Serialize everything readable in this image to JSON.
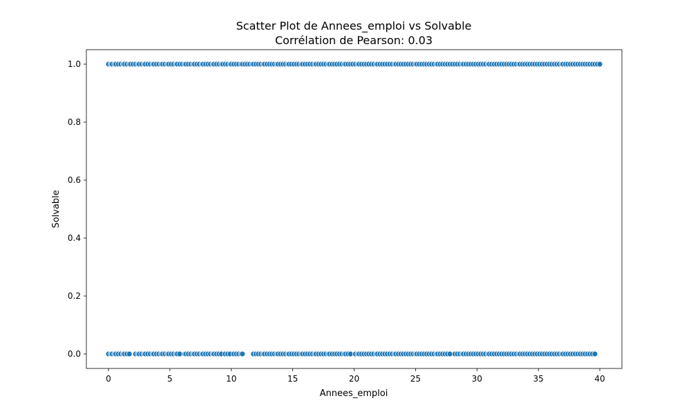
{
  "chart_data": {
    "type": "scatter",
    "title": "Scatter Plot de Annees_emploi vs Solvable",
    "subtitle": "Corrélation de Pearson: 0.03",
    "xlabel": "Annees_emploi",
    "ylabel": "Solvable",
    "xlim": [
      -1.8,
      41.8
    ],
    "ylim": [
      -0.05,
      1.05
    ],
    "xticks": [
      0,
      5,
      10,
      15,
      20,
      25,
      30,
      35,
      40
    ],
    "xtick_labels": [
      "0",
      "5",
      "10",
      "15",
      "20",
      "25",
      "30",
      "35",
      "40"
    ],
    "yticks": [
      0.0,
      0.2,
      0.4,
      0.6,
      0.8,
      1.0
    ],
    "ytick_labels": [
      "0.0",
      "0.2",
      "0.4",
      "0.6",
      "0.8",
      "1.0"
    ],
    "grid": false,
    "marker_color": "#1f77b4",
    "marker_edge_color": "#ffffff",
    "series": [
      {
        "y": 1,
        "x": [
          0.0,
          0.2,
          0.3,
          0.5,
          0.6,
          0.8,
          1.0,
          1.2,
          1.3,
          1.5,
          1.7,
          1.8,
          2.0,
          2.2,
          2.4,
          2.5,
          2.7,
          2.9,
          3.0,
          3.2,
          3.4,
          3.6,
          3.7,
          3.9,
          4.1,
          4.3,
          4.4,
          4.6,
          4.8,
          4.9,
          5.1,
          5.3,
          5.5,
          5.6,
          5.8,
          6.0,
          6.2,
          6.3,
          6.5,
          6.7,
          6.9,
          7.0,
          7.2,
          7.4,
          7.6,
          7.7,
          7.9,
          8.1,
          8.3,
          8.5,
          8.6,
          8.8,
          9.0,
          9.2,
          9.3,
          9.5,
          9.7,
          9.9,
          10.0,
          10.2,
          10.4,
          10.6,
          10.8,
          10.9,
          11.1,
          11.3,
          11.5,
          11.7,
          11.8,
          12.0,
          12.2,
          12.4,
          12.6,
          12.7,
          12.9,
          13.1,
          13.3,
          13.5,
          13.7,
          13.8,
          14.0,
          14.2,
          14.4,
          14.6,
          14.7,
          14.9,
          15.1,
          15.3,
          15.5,
          15.7,
          15.8,
          16.0,
          16.2,
          16.4,
          16.6,
          16.8,
          16.9,
          17.1,
          17.3,
          17.5,
          17.7,
          17.9,
          18.0,
          18.2,
          18.4,
          18.6,
          18.8,
          19.0,
          19.2,
          19.3,
          19.5,
          19.7,
          19.9,
          20.1,
          20.3,
          20.4,
          20.6,
          20.8,
          21.0,
          21.2,
          21.4,
          21.6,
          21.8,
          21.9,
          22.1,
          22.3,
          22.5,
          22.7,
          22.9,
          23.1,
          23.3,
          23.4,
          23.6,
          23.8,
          24.0,
          24.2,
          24.4,
          24.6,
          24.8,
          25.0,
          25.1,
          25.3,
          25.5,
          25.7,
          25.9,
          26.1,
          26.3,
          26.5,
          26.7,
          26.8,
          27.0,
          27.2,
          27.4,
          27.6,
          27.8,
          28.0,
          28.2,
          28.4,
          28.6,
          28.8,
          28.9,
          29.1,
          29.3,
          29.5,
          29.7,
          29.9,
          30.1,
          30.3,
          30.5,
          30.7,
          30.9,
          31.0,
          31.2,
          31.4,
          31.6,
          31.8,
          32.0,
          32.2,
          32.4,
          32.6,
          32.8,
          33.0,
          33.2,
          33.4,
          33.5,
          33.7,
          33.9,
          34.1,
          34.3,
          34.5,
          34.7,
          34.9,
          35.1,
          35.3,
          35.5,
          35.7,
          35.9,
          36.1,
          36.3,
          36.5,
          36.7,
          36.9,
          37.0,
          37.2,
          37.4,
          37.6,
          37.8,
          38.0,
          38.2,
          38.4,
          38.6,
          38.8,
          39.0,
          39.2,
          39.4,
          39.6,
          39.8,
          40.0
        ]
      },
      {
        "y": 0,
        "x": [
          0.0,
          0.2,
          0.3,
          0.5,
          0.6,
          0.8,
          1.0,
          1.2,
          1.3,
          1.5,
          1.7,
          2.2,
          2.4,
          2.5,
          2.7,
          2.9,
          3.0,
          3.2,
          3.4,
          3.6,
          3.7,
          3.9,
          4.1,
          4.3,
          4.4,
          4.6,
          4.8,
          4.9,
          5.1,
          5.3,
          5.5,
          5.6,
          5.8,
          6.2,
          6.3,
          6.5,
          6.7,
          6.9,
          7.0,
          7.2,
          7.4,
          7.6,
          7.7,
          7.9,
          8.1,
          8.3,
          8.5,
          8.6,
          8.8,
          9.0,
          9.2,
          9.5,
          9.7,
          9.9,
          10.2,
          10.4,
          10.6,
          10.8,
          10.9,
          11.8,
          12.0,
          12.2,
          12.4,
          12.6,
          12.7,
          12.9,
          13.1,
          13.3,
          13.5,
          13.7,
          13.8,
          14.0,
          14.2,
          14.4,
          14.6,
          14.7,
          14.9,
          15.1,
          15.3,
          15.5,
          15.7,
          15.8,
          16.0,
          16.2,
          16.4,
          16.6,
          16.8,
          16.9,
          17.1,
          17.3,
          17.5,
          17.7,
          17.9,
          18.0,
          18.2,
          18.4,
          18.6,
          18.8,
          19.0,
          19.2,
          19.3,
          19.5,
          19.7,
          20.1,
          20.3,
          20.4,
          20.6,
          20.8,
          21.0,
          21.2,
          21.4,
          21.6,
          21.8,
          21.9,
          22.1,
          22.3,
          22.5,
          22.7,
          22.9,
          23.1,
          23.3,
          23.4,
          23.6,
          23.8,
          24.0,
          24.2,
          24.4,
          24.6,
          24.8,
          25.0,
          25.1,
          25.3,
          25.5,
          25.7,
          25.9,
          26.1,
          26.3,
          26.5,
          26.7,
          26.8,
          27.0,
          27.2,
          27.4,
          27.6,
          27.8,
          28.2,
          28.4,
          28.6,
          28.8,
          28.9,
          29.1,
          29.3,
          29.5,
          29.7,
          29.9,
          30.1,
          30.3,
          30.5,
          30.7,
          30.9,
          31.0,
          31.2,
          31.4,
          31.6,
          31.8,
          32.0,
          32.2,
          32.4,
          32.6,
          32.8,
          33.0,
          33.2,
          33.4,
          33.5,
          33.7,
          33.9,
          34.1,
          34.3,
          34.5,
          34.7,
          34.9,
          35.1,
          35.3,
          35.5,
          35.7,
          35.9,
          36.1,
          36.3,
          36.5,
          36.7,
          36.9,
          37.0,
          37.2,
          37.4,
          37.6,
          37.8,
          38.0,
          38.2,
          38.4,
          38.6,
          38.8,
          39.0,
          39.2,
          39.4,
          39.6
        ]
      }
    ]
  }
}
